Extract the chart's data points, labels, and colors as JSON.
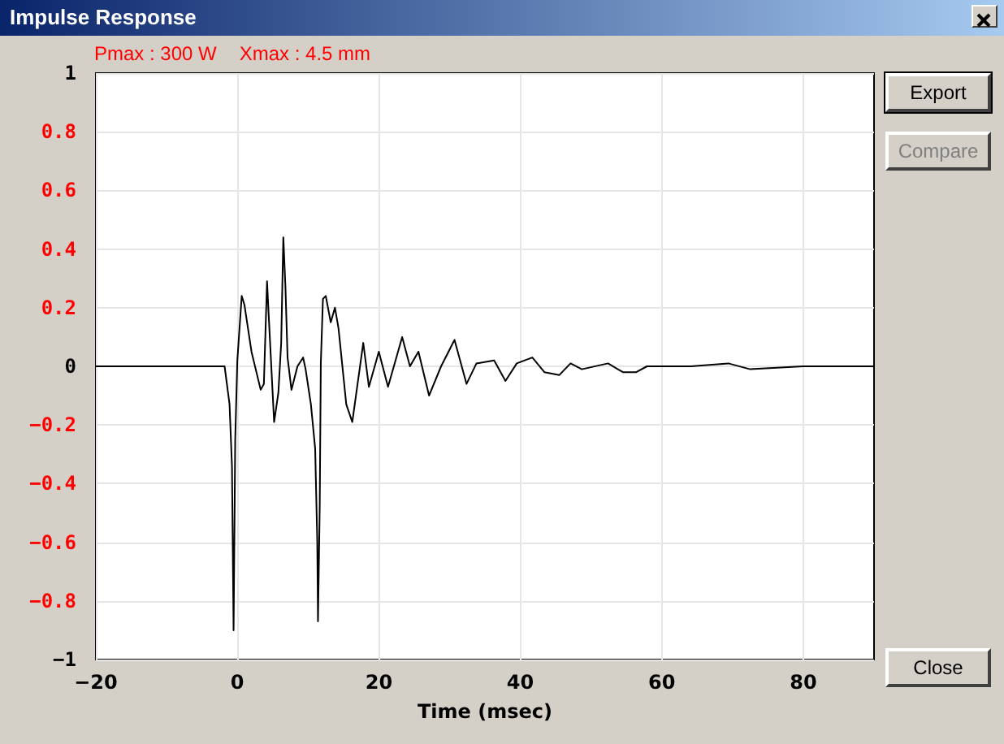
{
  "chart_data": {
    "type": "line",
    "title": "Impulse Response",
    "xlabel": "Time (msec)",
    "annotations": [
      "Pmax : 300 W",
      "Xmax : 4.5 mm",
      "Export",
      "Compare",
      "Close"
    ],
    "xlim": [
      -20,
      90
    ],
    "xticks": [
      -20,
      0,
      20,
      40,
      60,
      80
    ],
    "ylim": [
      -1,
      1
    ],
    "yticks": [
      -1,
      -0.8,
      -0.6,
      -0.4,
      -0.2,
      0,
      0.2,
      0.4,
      0.6,
      0.8,
      1
    ],
    "grid": true,
    "marker": "none",
    "line_style": "solid",
    "series": [
      {
        "color": "#000000",
        "x": [
          -20,
          -1.8,
          -1.1,
          -0.76,
          -0.53,
          -0.3,
          0.0,
          0.62,
          1.0,
          2.0,
          3.3,
          3.75,
          4.2,
          4.4,
          5.2,
          5.8,
          6.2,
          6.5,
          6.8,
          7.1,
          7.65,
          8.5,
          9.3,
          9.65,
          10.4,
          11.0,
          11.3,
          11.4,
          11.65,
          11.8,
          12.1,
          12.5,
          13.2,
          13.8,
          14.3,
          15.4,
          16.25,
          17.8,
          18.6,
          20.0,
          21.3,
          23.3,
          24.4,
          25.6,
          27.1,
          28.8,
          30.7,
          32.4,
          33.8,
          36.3,
          37.9,
          39.5,
          41.7,
          43.4,
          45.5,
          47.1,
          48.7,
          52.4,
          54.5,
          56.4,
          57.9,
          62.5,
          64.1,
          69.4,
          72.5,
          80,
          90
        ],
        "values": [
          0,
          0,
          -0.13,
          -0.34,
          -0.9,
          -0.25,
          0.02,
          0.24,
          0.21,
          0.05,
          -0.08,
          -0.06,
          0.29,
          0.19,
          -0.19,
          -0.09,
          0.08,
          0.44,
          0.27,
          0.03,
          -0.08,
          0,
          0.03,
          -0.01,
          -0.13,
          -0.28,
          -0.6,
          -0.87,
          -0.47,
          0.01,
          0.23,
          0.24,
          0.15,
          0.2,
          0.13,
          -0.13,
          -0.19,
          0.08,
          -0.07,
          0.05,
          -0.07,
          0.1,
          0,
          0.05,
          -0.1,
          0,
          0.09,
          -0.06,
          0.01,
          0.02,
          -0.05,
          0.01,
          0.03,
          -0.02,
          -0.03,
          0.01,
          -0.01,
          0.01,
          -0.02,
          -0.02,
          0,
          0,
          0,
          0.01,
          -0.01,
          0,
          0
        ]
      }
    ]
  }
}
